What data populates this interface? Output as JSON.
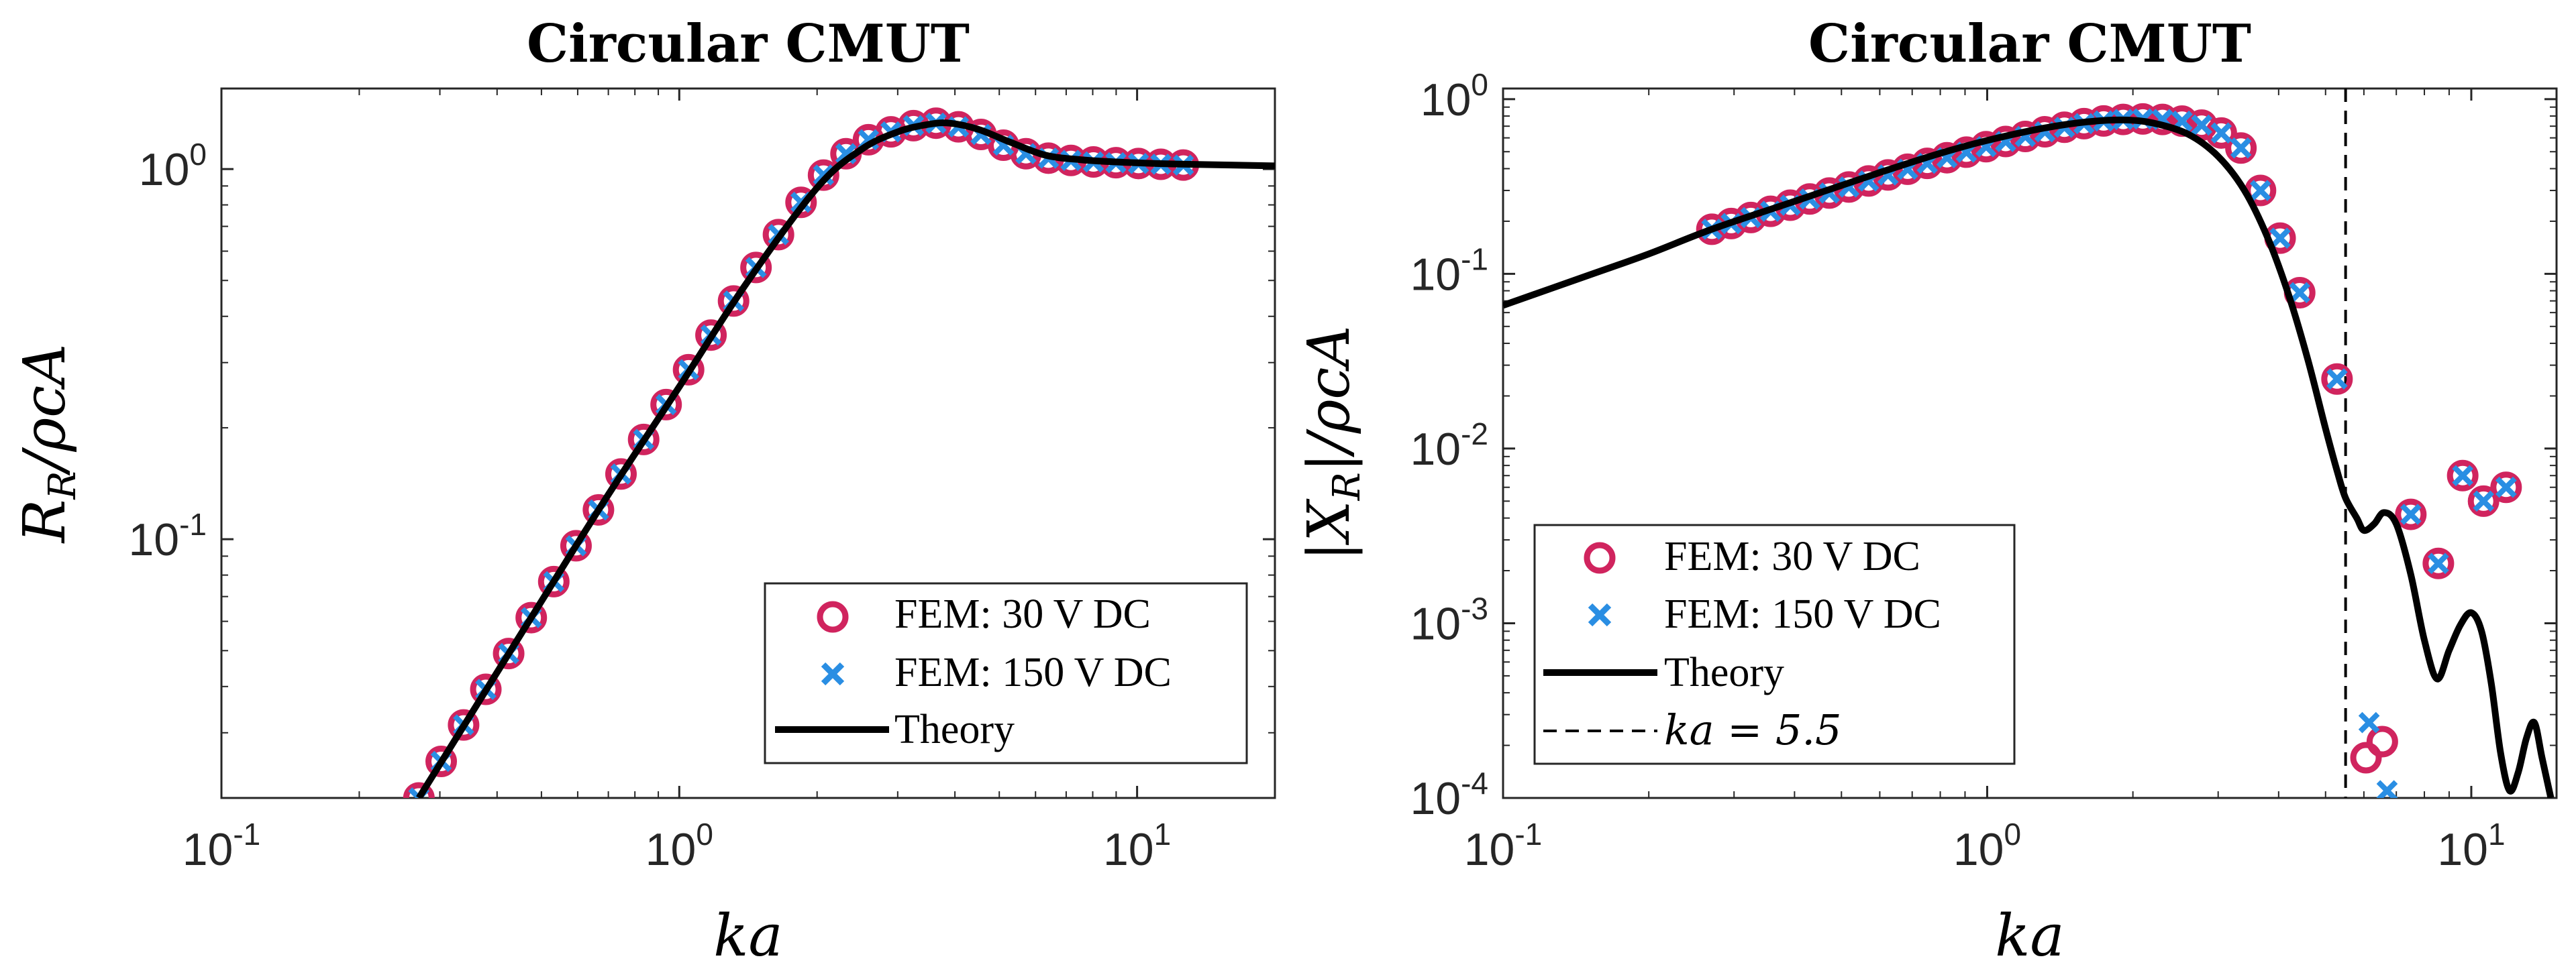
{
  "colors": {
    "fem30": "#d0245e",
    "fem150": "#2a8ee3",
    "theory": "#000000",
    "axes": "#262626"
  },
  "icons": {
    "marker_fem30": "circle-marker",
    "marker_fem150": "x-marker"
  },
  "chart_data": [
    {
      "type": "line",
      "title": "Circular CMUT",
      "xlabel": "ka",
      "ylabel": "R_R/ρcA",
      "xscale": "log",
      "yscale": "log",
      "xlim": [
        0.1,
        20
      ],
      "ylim": [
        0.02,
        1.65
      ],
      "xticks": [
        {
          "value": 0.1,
          "base": "10",
          "exp": "-1"
        },
        {
          "value": 1,
          "base": "10",
          "exp": "0"
        },
        {
          "value": 10,
          "base": "10",
          "exp": "1"
        }
      ],
      "yticks": [
        {
          "value": 0.1,
          "base": "10",
          "exp": "-1"
        },
        {
          "value": 1,
          "base": "10",
          "exp": "0"
        }
      ],
      "legend_position": "bottom-right",
      "legend": {
        "fem30": "FEM: 30 V DC",
        "fem150": "FEM: 150 V DC",
        "theory": "Theory"
      },
      "series": [
        {
          "name": "Theory",
          "style": "solid-line",
          "x": [
            0.27,
            0.35,
            0.5,
            0.7,
            1.0,
            1.4,
            2.0,
            2.5,
            3.0,
            3.5,
            3.9,
            4.5,
            5.3,
            6.3,
            7.5,
            9.0,
            11.0,
            13.0,
            16.0,
            20.0
          ],
          "y": [
            0.02,
            0.0335,
            0.068,
            0.132,
            0.258,
            0.49,
            0.89,
            1.13,
            1.26,
            1.32,
            1.33,
            1.28,
            1.18,
            1.09,
            1.06,
            1.045,
            1.035,
            1.03,
            1.025,
            1.02
          ]
        },
        {
          "name": "FEM: 30 V DC",
          "style": "circle",
          "x": [
            0.27,
            0.302,
            0.338,
            0.378,
            0.424,
            0.475,
            0.532,
            0.595,
            0.666,
            0.746,
            0.836,
            0.936,
            1.048,
            1.173,
            1.314,
            1.471,
            1.647,
            1.845,
            2.066,
            2.313,
            2.59,
            2.9,
            3.248,
            3.637,
            4.072,
            4.56,
            5.106,
            5.718,
            6.403,
            7.17,
            8.029,
            8.99,
            10.07,
            11.27,
            12.62
          ],
          "y": [
            0.02,
            0.0251,
            0.0315,
            0.0393,
            0.0491,
            0.0614,
            0.0768,
            0.096,
            0.12,
            0.15,
            0.186,
            0.231,
            0.287,
            0.356,
            0.44,
            0.542,
            0.665,
            0.813,
            0.963,
            1.1,
            1.2,
            1.26,
            1.31,
            1.33,
            1.3,
            1.24,
            1.16,
            1.1,
            1.07,
            1.055,
            1.045,
            1.04,
            1.035,
            1.03,
            1.025
          ]
        },
        {
          "name": "FEM: 150 V DC",
          "style": "x",
          "x": [
            0.27,
            0.302,
            0.338,
            0.378,
            0.424,
            0.475,
            0.532,
            0.595,
            0.666,
            0.746,
            0.836,
            0.936,
            1.048,
            1.173,
            1.314,
            1.471,
            1.647,
            1.845,
            2.066,
            2.313,
            2.59,
            2.9,
            3.248,
            3.637,
            4.072,
            4.56,
            5.106,
            5.718,
            6.403,
            7.17,
            8.029,
            8.99,
            10.07,
            11.27,
            12.62
          ],
          "y": [
            0.02,
            0.0251,
            0.0315,
            0.0393,
            0.0491,
            0.0614,
            0.0768,
            0.096,
            0.12,
            0.15,
            0.186,
            0.231,
            0.287,
            0.356,
            0.44,
            0.542,
            0.665,
            0.813,
            0.963,
            1.1,
            1.2,
            1.26,
            1.31,
            1.33,
            1.3,
            1.24,
            1.16,
            1.1,
            1.07,
            1.055,
            1.045,
            1.04,
            1.035,
            1.03,
            1.025
          ]
        }
      ]
    },
    {
      "type": "line",
      "title": "Circular CMUT",
      "xlabel": "ka",
      "ylabel": "|X_R|/ρcA",
      "xscale": "log",
      "yscale": "log",
      "xlim": [
        0.1,
        15
      ],
      "ylim": [
        0.0001,
        1.15
      ],
      "xticks": [
        {
          "value": 0.1,
          "base": "10",
          "exp": "-1"
        },
        {
          "value": 1,
          "base": "10",
          "exp": "0"
        },
        {
          "value": 10,
          "base": "10",
          "exp": "1"
        }
      ],
      "yticks": [
        {
          "value": 0.0001,
          "base": "10",
          "exp": "-4"
        },
        {
          "value": 0.001,
          "base": "10",
          "exp": "-3"
        },
        {
          "value": 0.01,
          "base": "10",
          "exp": "-2"
        },
        {
          "value": 0.1,
          "base": "10",
          "exp": "-1"
        },
        {
          "value": 1,
          "base": "10",
          "exp": "0"
        }
      ],
      "legend_position": "bottom-left",
      "legend": {
        "fem30": "FEM: 30 V DC",
        "fem150": "FEM: 150 V DC",
        "theory": "Theory",
        "vline": "ka = 5.5"
      },
      "vline": {
        "x": 5.5,
        "style": "dashed",
        "label": "ka = 5.5"
      },
      "series": [
        {
          "name": "Theory",
          "style": "solid-line",
          "x": [
            0.1,
            0.15,
            0.2,
            0.27,
            0.4,
            0.6,
            0.8,
            1.0,
            1.3,
            1.6,
            1.9,
            2.2,
            2.6,
            3.0,
            3.4,
            3.8,
            4.2,
            4.6,
            5.0,
            5.3,
            5.5,
            5.8,
            6.0,
            6.3,
            6.6,
            7.0,
            7.5,
            8.0,
            8.5,
            9.0,
            9.5,
            10.0,
            10.5,
            11.0,
            11.5,
            12.0,
            12.5,
            13.0,
            13.5,
            14.0,
            14.6
          ],
          "y": [
            0.066,
            0.098,
            0.13,
            0.18,
            0.26,
            0.38,
            0.49,
            0.58,
            0.68,
            0.74,
            0.76,
            0.73,
            0.63,
            0.47,
            0.3,
            0.16,
            0.075,
            0.032,
            0.013,
            0.0072,
            0.0052,
            0.004,
            0.0034,
            0.0037,
            0.0043,
            0.0037,
            0.0019,
            0.0008,
            0.00048,
            0.0007,
            0.00098,
            0.00115,
            0.0009,
            0.00045,
            0.00018,
            0.00011,
            0.00014,
            0.00022,
            0.00027,
            0.00017,
            0.0001
          ]
        },
        {
          "name": "FEM: 30 V DC",
          "style": "circle",
          "x": [
            0.27,
            0.296,
            0.325,
            0.357,
            0.392,
            0.43,
            0.472,
            0.518,
            0.569,
            0.624,
            0.685,
            0.752,
            0.826,
            0.906,
            0.995,
            1.092,
            1.199,
            1.316,
            1.444,
            1.585,
            1.74,
            1.91,
            2.097,
            2.302,
            2.527,
            2.774,
            3.045,
            3.343,
            3.669,
            4.028,
            4.421,
            5.28,
            6.06,
            6.55,
            7.5,
            8.55,
            9.6,
            10.6,
            11.8
          ],
          "y": [
            0.18,
            0.194,
            0.21,
            0.228,
            0.247,
            0.268,
            0.29,
            0.314,
            0.34,
            0.368,
            0.397,
            0.429,
            0.462,
            0.497,
            0.534,
            0.572,
            0.611,
            0.65,
            0.69,
            0.724,
            0.75,
            0.765,
            0.77,
            0.765,
            0.748,
            0.71,
            0.64,
            0.525,
            0.3,
            0.16,
            0.078,
            0.025,
            0.00017,
            0.00021,
            0.0042,
            0.0022,
            0.007,
            0.005,
            0.006
          ]
        },
        {
          "name": "FEM: 150 V DC",
          "style": "x",
          "x": [
            0.27,
            0.296,
            0.325,
            0.357,
            0.392,
            0.43,
            0.472,
            0.518,
            0.569,
            0.624,
            0.685,
            0.752,
            0.826,
            0.906,
            0.995,
            1.092,
            1.199,
            1.316,
            1.444,
            1.585,
            1.74,
            1.91,
            2.097,
            2.302,
            2.527,
            2.774,
            3.045,
            3.343,
            3.669,
            4.028,
            4.421,
            5.28,
            6.15,
            6.7,
            7.5,
            8.55,
            9.6,
            10.6,
            11.8
          ],
          "y": [
            0.18,
            0.194,
            0.21,
            0.228,
            0.247,
            0.268,
            0.29,
            0.314,
            0.34,
            0.368,
            0.397,
            0.429,
            0.462,
            0.497,
            0.534,
            0.572,
            0.611,
            0.65,
            0.69,
            0.724,
            0.75,
            0.765,
            0.77,
            0.765,
            0.748,
            0.71,
            0.64,
            0.525,
            0.3,
            0.16,
            0.078,
            0.025,
            0.00027,
            0.00011,
            0.0042,
            0.0022,
            0.007,
            0.005,
            0.006
          ]
        }
      ]
    }
  ]
}
